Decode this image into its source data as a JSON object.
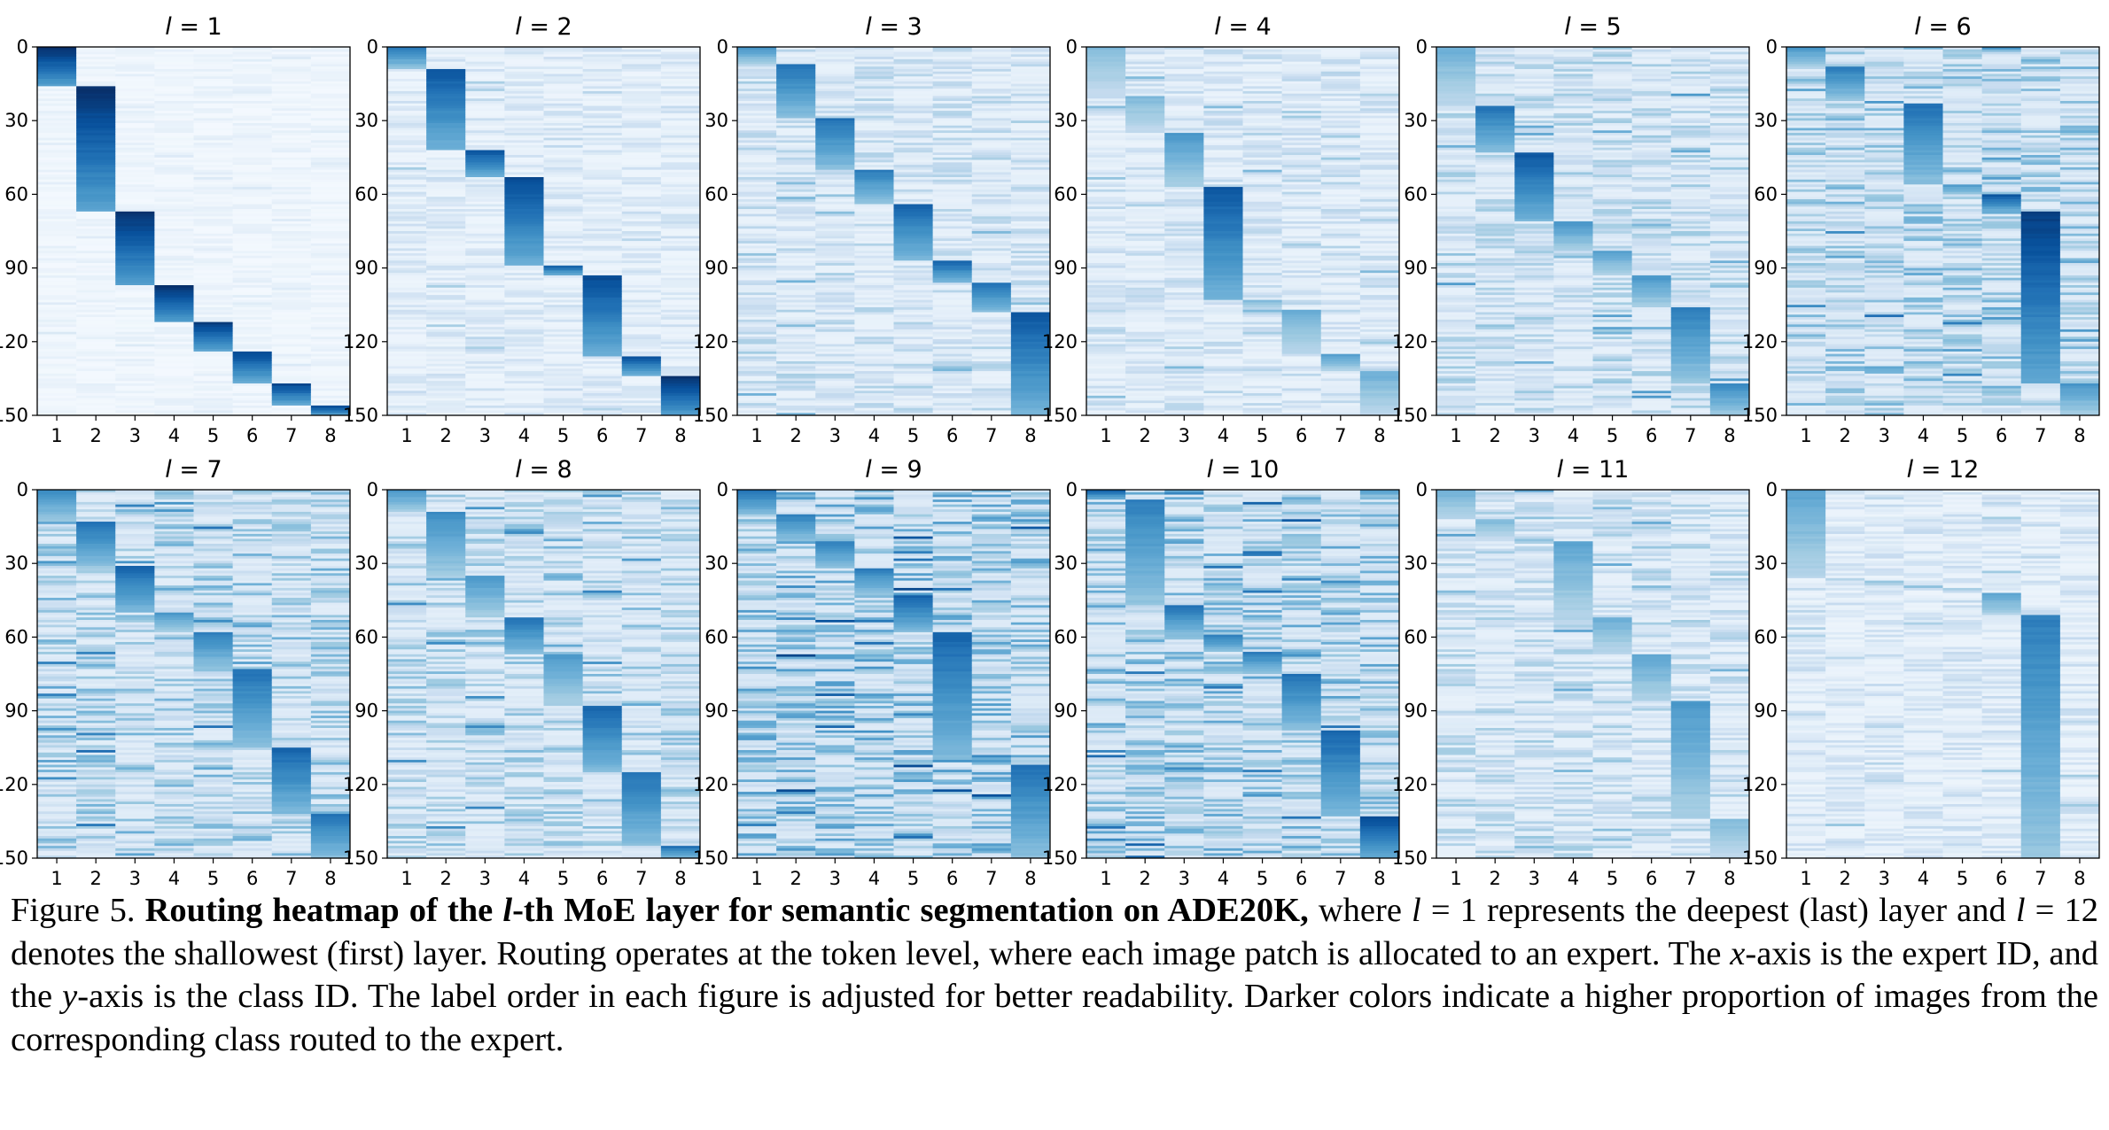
{
  "figure": {
    "x_ticks": [
      "1",
      "2",
      "3",
      "4",
      "5",
      "6",
      "7",
      "8"
    ],
    "y_ticks": [
      "0",
      "30",
      "60",
      "90",
      "120",
      "150"
    ],
    "panel_titles": [
      "l = 1",
      "l = 2",
      "l = 3",
      "l = 4",
      "l = 5",
      "l = 6",
      "l = 7",
      "l = 8",
      "l = 9",
      "l = 10",
      "l = 11",
      "l = 12"
    ],
    "cmap": [
      "#f7fbff",
      "#deebf7",
      "#c6dbef",
      "#9ecae1",
      "#6baed6",
      "#4292c6",
      "#2171b5",
      "#08519c",
      "#08306b"
    ]
  },
  "chart_data": {
    "type": "heatmap",
    "xlabel": "",
    "ylabel": "",
    "x_categories": [
      1,
      2,
      3,
      4,
      5,
      6,
      7,
      8
    ],
    "ylim": [
      0,
      150
    ],
    "panels": [
      {
        "title": "l = 1",
        "blocks": [
          {
            "expert": 1,
            "y_start": 0,
            "y_end": 16,
            "intensity": 1.0
          },
          {
            "expert": 2,
            "y_start": 16,
            "y_end": 67,
            "intensity": 1.0
          },
          {
            "expert": 3,
            "y_start": 67,
            "y_end": 97,
            "intensity": 1.0
          },
          {
            "expert": 4,
            "y_start": 97,
            "y_end": 112,
            "intensity": 1.0
          },
          {
            "expert": 5,
            "y_start": 112,
            "y_end": 124,
            "intensity": 0.95
          },
          {
            "expert": 6,
            "y_start": 124,
            "y_end": 137,
            "intensity": 0.9
          },
          {
            "expert": 7,
            "y_start": 137,
            "y_end": 146,
            "intensity": 0.9
          },
          {
            "expert": 8,
            "y_start": 146,
            "y_end": 150,
            "intensity": 0.9
          }
        ],
        "background": 0.06
      },
      {
        "title": "l = 2",
        "blocks": [
          {
            "expert": 1,
            "y_start": 0,
            "y_end": 9,
            "intensity": 0.7
          },
          {
            "expert": 2,
            "y_start": 9,
            "y_end": 42,
            "intensity": 0.85
          },
          {
            "expert": 3,
            "y_start": 42,
            "y_end": 53,
            "intensity": 0.85
          },
          {
            "expert": 4,
            "y_start": 53,
            "y_end": 89,
            "intensity": 0.9
          },
          {
            "expert": 5,
            "y_start": 89,
            "y_end": 93,
            "intensity": 0.8
          },
          {
            "expert": 6,
            "y_start": 93,
            "y_end": 126,
            "intensity": 0.9
          },
          {
            "expert": 7,
            "y_start": 126,
            "y_end": 134,
            "intensity": 0.85
          },
          {
            "expert": 8,
            "y_start": 134,
            "y_end": 150,
            "intensity": 1.0
          }
        ],
        "background": 0.14
      },
      {
        "title": "l = 3",
        "blocks": [
          {
            "expert": 1,
            "y_start": 0,
            "y_end": 7,
            "intensity": 0.6
          },
          {
            "expert": 2,
            "y_start": 7,
            "y_end": 29,
            "intensity": 0.75
          },
          {
            "expert": 3,
            "y_start": 29,
            "y_end": 50,
            "intensity": 0.75
          },
          {
            "expert": 4,
            "y_start": 50,
            "y_end": 64,
            "intensity": 0.7
          },
          {
            "expert": 5,
            "y_start": 64,
            "y_end": 87,
            "intensity": 0.8
          },
          {
            "expert": 6,
            "y_start": 87,
            "y_end": 96,
            "intensity": 0.8
          },
          {
            "expert": 7,
            "y_start": 96,
            "y_end": 108,
            "intensity": 0.75
          },
          {
            "expert": 8,
            "y_start": 108,
            "y_end": 150,
            "intensity": 0.85
          }
        ],
        "background": 0.2
      },
      {
        "title": "l = 4",
        "blocks": [
          {
            "expert": 1,
            "y_start": 0,
            "y_end": 20,
            "intensity": 0.45
          },
          {
            "expert": 2,
            "y_start": 20,
            "y_end": 35,
            "intensity": 0.45
          },
          {
            "expert": 3,
            "y_start": 35,
            "y_end": 57,
            "intensity": 0.6
          },
          {
            "expert": 4,
            "y_start": 57,
            "y_end": 103,
            "intensity": 0.85
          },
          {
            "expert": 5,
            "y_start": 103,
            "y_end": 107,
            "intensity": 0.45
          },
          {
            "expert": 6,
            "y_start": 107,
            "y_end": 125,
            "intensity": 0.5
          },
          {
            "expert": 7,
            "y_start": 125,
            "y_end": 132,
            "intensity": 0.55
          },
          {
            "expert": 8,
            "y_start": 132,
            "y_end": 150,
            "intensity": 0.5
          }
        ],
        "background": 0.18
      },
      {
        "title": "l = 5",
        "blocks": [
          {
            "expert": 1,
            "y_start": 0,
            "y_end": 24,
            "intensity": 0.5
          },
          {
            "expert": 2,
            "y_start": 24,
            "y_end": 43,
            "intensity": 0.75
          },
          {
            "expert": 3,
            "y_start": 43,
            "y_end": 71,
            "intensity": 0.85
          },
          {
            "expert": 4,
            "y_start": 71,
            "y_end": 83,
            "intensity": 0.6
          },
          {
            "expert": 5,
            "y_start": 83,
            "y_end": 93,
            "intensity": 0.55
          },
          {
            "expert": 6,
            "y_start": 93,
            "y_end": 106,
            "intensity": 0.6
          },
          {
            "expert": 7,
            "y_start": 106,
            "y_end": 137,
            "intensity": 0.7
          },
          {
            "expert": 8,
            "y_start": 137,
            "y_end": 150,
            "intensity": 0.65
          }
        ],
        "background": 0.24
      },
      {
        "title": "l = 6",
        "blocks": [
          {
            "expert": 1,
            "y_start": 0,
            "y_end": 8,
            "intensity": 0.6
          },
          {
            "expert": 2,
            "y_start": 8,
            "y_end": 22,
            "intensity": 0.7
          },
          {
            "expert": 3,
            "y_start": 22,
            "y_end": 23,
            "intensity": 0.6
          },
          {
            "expert": 4,
            "y_start": 23,
            "y_end": 56,
            "intensity": 0.75
          },
          {
            "expert": 5,
            "y_start": 56,
            "y_end": 60,
            "intensity": 0.6
          },
          {
            "expert": 6,
            "y_start": 60,
            "y_end": 67,
            "intensity": 0.85
          },
          {
            "expert": 7,
            "y_start": 67,
            "y_end": 137,
            "intensity": 0.95
          },
          {
            "expert": 8,
            "y_start": 137,
            "y_end": 150,
            "intensity": 0.6
          }
        ],
        "background": 0.3
      },
      {
        "title": "l = 7",
        "blocks": [
          {
            "expert": 1,
            "y_start": 0,
            "y_end": 13,
            "intensity": 0.65
          },
          {
            "expert": 2,
            "y_start": 13,
            "y_end": 31,
            "intensity": 0.75
          },
          {
            "expert": 3,
            "y_start": 31,
            "y_end": 50,
            "intensity": 0.8
          },
          {
            "expert": 4,
            "y_start": 50,
            "y_end": 58,
            "intensity": 0.6
          },
          {
            "expert": 5,
            "y_start": 58,
            "y_end": 73,
            "intensity": 0.7
          },
          {
            "expert": 6,
            "y_start": 73,
            "y_end": 105,
            "intensity": 0.75
          },
          {
            "expert": 7,
            "y_start": 105,
            "y_end": 132,
            "intensity": 0.8
          },
          {
            "expert": 8,
            "y_start": 132,
            "y_end": 150,
            "intensity": 0.75
          }
        ],
        "background": 0.3
      },
      {
        "title": "l = 8",
        "blocks": [
          {
            "expert": 1,
            "y_start": 0,
            "y_end": 9,
            "intensity": 0.6
          },
          {
            "expert": 2,
            "y_start": 9,
            "y_end": 35,
            "intensity": 0.65
          },
          {
            "expert": 3,
            "y_start": 35,
            "y_end": 52,
            "intensity": 0.6
          },
          {
            "expert": 4,
            "y_start": 52,
            "y_end": 67,
            "intensity": 0.75
          },
          {
            "expert": 5,
            "y_start": 67,
            "y_end": 88,
            "intensity": 0.6
          },
          {
            "expert": 6,
            "y_start": 88,
            "y_end": 115,
            "intensity": 0.8
          },
          {
            "expert": 7,
            "y_start": 115,
            "y_end": 145,
            "intensity": 0.75
          },
          {
            "expert": 8,
            "y_start": 145,
            "y_end": 150,
            "intensity": 0.75
          }
        ],
        "background": 0.28
      },
      {
        "title": "l = 9",
        "blocks": [
          {
            "expert": 1,
            "y_start": 0,
            "y_end": 10,
            "intensity": 0.75
          },
          {
            "expert": 2,
            "y_start": 10,
            "y_end": 21,
            "intensity": 0.7
          },
          {
            "expert": 3,
            "y_start": 21,
            "y_end": 32,
            "intensity": 0.7
          },
          {
            "expert": 4,
            "y_start": 32,
            "y_end": 43,
            "intensity": 0.7
          },
          {
            "expert": 5,
            "y_start": 43,
            "y_end": 58,
            "intensity": 0.8
          },
          {
            "expert": 6,
            "y_start": 58,
            "y_end": 110,
            "intensity": 0.8
          },
          {
            "expert": 7,
            "y_start": 110,
            "y_end": 112,
            "intensity": 0.6
          },
          {
            "expert": 8,
            "y_start": 112,
            "y_end": 150,
            "intensity": 0.75
          }
        ],
        "background": 0.36
      },
      {
        "title": "l = 10",
        "blocks": [
          {
            "expert": 1,
            "y_start": 0,
            "y_end": 4,
            "intensity": 0.8
          },
          {
            "expert": 2,
            "y_start": 4,
            "y_end": 47,
            "intensity": 0.7
          },
          {
            "expert": 3,
            "y_start": 47,
            "y_end": 59,
            "intensity": 0.75
          },
          {
            "expert": 4,
            "y_start": 59,
            "y_end": 66,
            "intensity": 0.7
          },
          {
            "expert": 5,
            "y_start": 66,
            "y_end": 75,
            "intensity": 0.7
          },
          {
            "expert": 6,
            "y_start": 75,
            "y_end": 98,
            "intensity": 0.75
          },
          {
            "expert": 7,
            "y_start": 98,
            "y_end": 133,
            "intensity": 0.8
          },
          {
            "expert": 8,
            "y_start": 133,
            "y_end": 150,
            "intensity": 0.9
          }
        ],
        "background": 0.34
      },
      {
        "title": "l = 11",
        "blocks": [
          {
            "expert": 1,
            "y_start": 0,
            "y_end": 12,
            "intensity": 0.5
          },
          {
            "expert": 2,
            "y_start": 12,
            "y_end": 20,
            "intensity": 0.45
          },
          {
            "expert": 3,
            "y_start": 20,
            "y_end": 21,
            "intensity": 0.4
          },
          {
            "expert": 4,
            "y_start": 21,
            "y_end": 52,
            "intensity": 0.55
          },
          {
            "expert": 5,
            "y_start": 52,
            "y_end": 67,
            "intensity": 0.5
          },
          {
            "expert": 6,
            "y_start": 67,
            "y_end": 86,
            "intensity": 0.55
          },
          {
            "expert": 7,
            "y_start": 86,
            "y_end": 134,
            "intensity": 0.6
          },
          {
            "expert": 8,
            "y_start": 134,
            "y_end": 150,
            "intensity": 0.45
          }
        ],
        "background": 0.22
      },
      {
        "title": "l = 12",
        "blocks": [
          {
            "expert": 1,
            "y_start": 0,
            "y_end": 36,
            "intensity": 0.55
          },
          {
            "expert": 2,
            "y_start": 36,
            "y_end": 37,
            "intensity": 0.3
          },
          {
            "expert": 3,
            "y_start": 37,
            "y_end": 39,
            "intensity": 0.4
          },
          {
            "expert": 4,
            "y_start": 39,
            "y_end": 40,
            "intensity": 0.4
          },
          {
            "expert": 5,
            "y_start": 40,
            "y_end": 42,
            "intensity": 0.35
          },
          {
            "expert": 6,
            "y_start": 42,
            "y_end": 51,
            "intensity": 0.55
          },
          {
            "expert": 7,
            "y_start": 51,
            "y_end": 150,
            "intensity": 0.7
          },
          {
            "expert": 8,
            "y_start": 150,
            "y_end": 150,
            "intensity": 0.3
          }
        ],
        "background": 0.16
      }
    ]
  },
  "caption": {
    "label": "Figure 5.",
    "bold": "Routing heatmap of the ",
    "bold_var": "l",
    "bold_rest": "-th MoE layer for semantic segmentation on ADE20K,",
    "t1": " where ",
    "v1": "l",
    "t2": " = 1 represents the deepest (last) layer and ",
    "v2": "l",
    "t3": " = 12 denotes the shallowest (first) layer. Routing operates at the token level, where each image patch is allocated to an expert. The ",
    "v3": "x",
    "t4": "-axis is the expert ID, and the ",
    "v4": "y",
    "t5": "-axis is the class ID. The label order in each figure is adjusted for better readability. Darker colors indicate a higher proportion of images from the corresponding class routed to the expert."
  }
}
